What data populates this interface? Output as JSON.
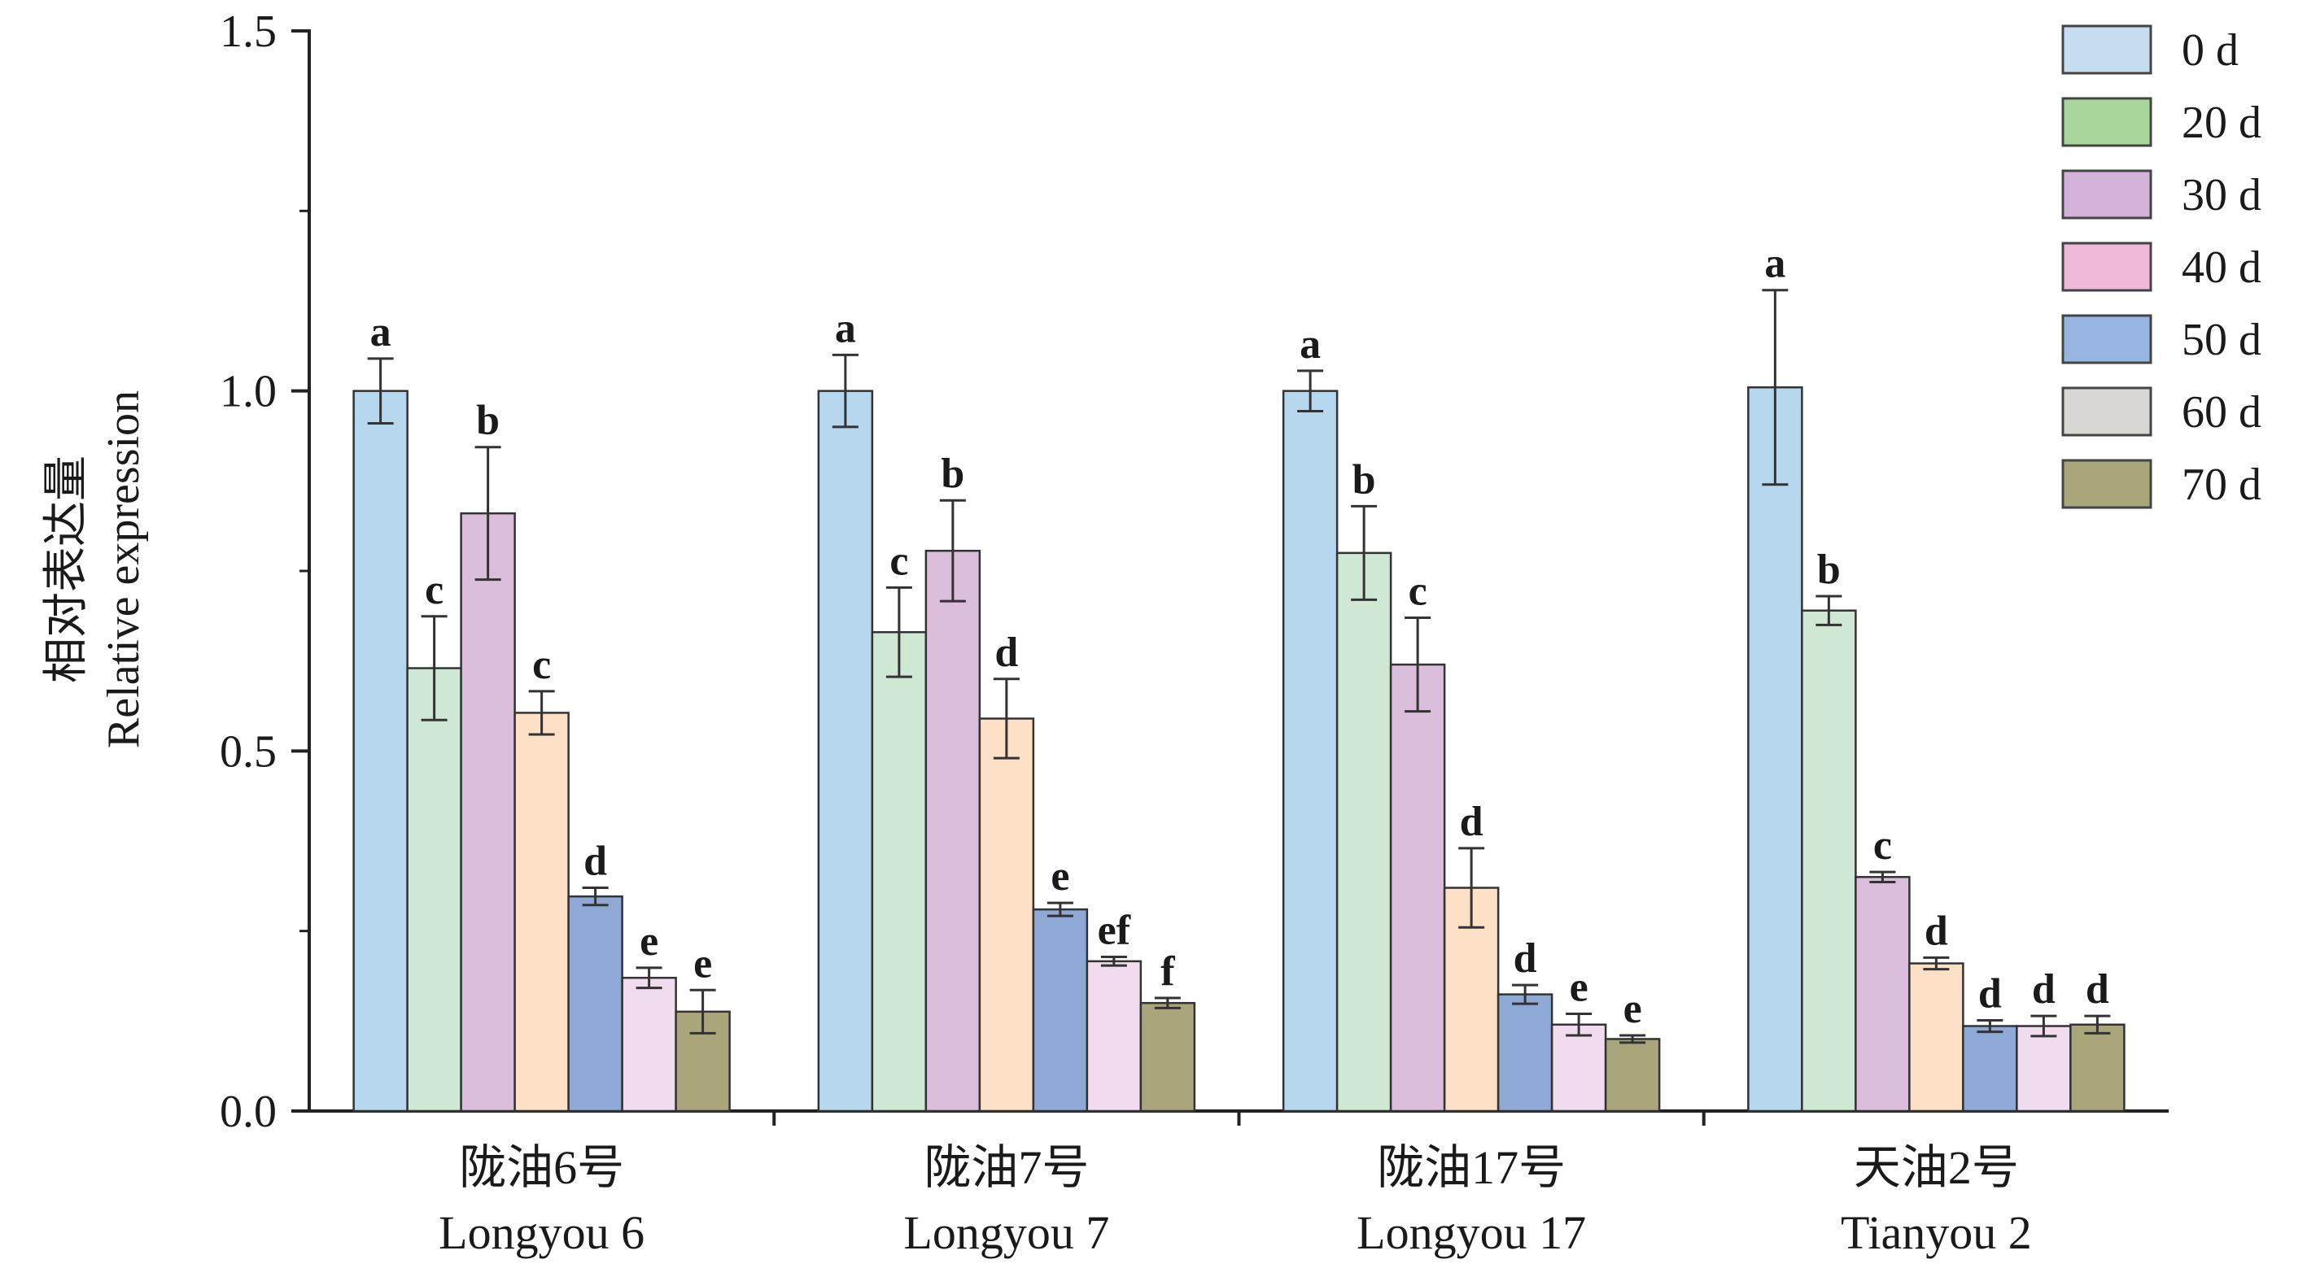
{
  "chart_data": {
    "type": "bar",
    "ylabel_cn": "相对表达量",
    "ylabel_en": "Relative expression",
    "ylim": [
      0,
      1.5
    ],
    "yticks": [
      "0.0",
      "0.5",
      "1.0",
      "1.5"
    ],
    "categories": [
      {
        "cn": "陇油6号",
        "en": "Longyou 6"
      },
      {
        "cn": "陇油7号",
        "en": "Longyou 7"
      },
      {
        "cn": "陇油17号",
        "en": "Longyou 17"
      },
      {
        "cn": "天油2号",
        "en": "Tianyou 2"
      }
    ],
    "legend_position": "top-right",
    "series": [
      {
        "name": "0 d",
        "color": "#b6d7ee",
        "values": [
          1.0,
          1.0,
          1.0,
          1.005
        ],
        "errors": [
          0.045,
          0.05,
          0.028,
          0.135
        ],
        "labels": [
          "a",
          "a",
          "a",
          "a"
        ]
      },
      {
        "name": "20 d",
        "color": "#cfe8d3",
        "values": [
          0.615,
          0.665,
          0.775,
          0.695
        ],
        "errors": [
          0.072,
          0.062,
          0.065,
          0.02
        ],
        "labels": [
          "c",
          "c",
          "b",
          "b"
        ]
      },
      {
        "name": "30 d",
        "color": "#dbbedb",
        "values": [
          0.83,
          0.778,
          0.62,
          0.325
        ],
        "errors": [
          0.092,
          0.07,
          0.065,
          0.007
        ],
        "labels": [
          "b",
          "b",
          "c",
          "c"
        ]
      },
      {
        "name": "40 d",
        "color": "#fde0c6",
        "values": [
          0.553,
          0.545,
          0.31,
          0.205
        ],
        "errors": [
          0.03,
          0.055,
          0.055,
          0.008
        ],
        "labels": [
          "c",
          "d",
          "d",
          "d"
        ]
      },
      {
        "name": "50 d",
        "color": "#8fa9d6",
        "values": [
          0.298,
          0.28,
          0.162,
          0.118
        ],
        "errors": [
          0.012,
          0.009,
          0.013,
          0.008
        ],
        "labels": [
          "d",
          "e",
          "d",
          "d"
        ]
      },
      {
        "name": "60 d",
        "color": "#f1dcef",
        "values": [
          0.185,
          0.208,
          0.12,
          0.118
        ],
        "errors": [
          0.014,
          0.006,
          0.015,
          0.014
        ],
        "labels": [
          "e",
          "ef",
          "e",
          "d"
        ]
      },
      {
        "name": "70 d",
        "color": "#a9a67c",
        "values": [
          0.138,
          0.15,
          0.1,
          0.12
        ],
        "errors": [
          0.03,
          0.007,
          0.005,
          0.012
        ],
        "labels": [
          "e",
          "f",
          "e",
          "d"
        ]
      }
    ],
    "legend_colors": [
      "#c8dcf0",
      "#a9d69a",
      "#d3b3d9",
      "#f0b9d9",
      "#97b5e0",
      "#d9d7d4",
      "#a9a67c"
    ]
  }
}
